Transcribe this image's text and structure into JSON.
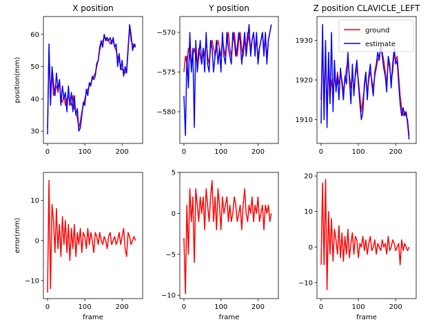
{
  "colors": {
    "ground": "#ff0000",
    "estimate": "#0000ff",
    "error": "#ff0000"
  },
  "chart_data": [
    {
      "type": "line",
      "panel": "x-position",
      "title": "X position",
      "xlabel": "",
      "ylabel": "position(mm)",
      "xlim": [
        -11,
        255
      ],
      "ylim": [
        26.2,
        65.5
      ],
      "xticks": [
        0,
        100,
        200
      ],
      "yticks": [
        30,
        40,
        50,
        60
      ],
      "grid": false,
      "legend": null,
      "x_start": 0,
      "x_step": 4,
      "series": [
        {
          "name": "ground",
          "color": "#ff0000",
          "values": [
            31,
            55,
            42,
            48,
            41,
            43,
            44,
            42,
            46,
            40,
            39,
            41,
            38,
            40,
            41,
            39,
            38,
            41,
            37,
            36,
            34,
            31,
            33,
            36,
            38,
            40,
            42,
            43,
            44,
            45,
            46,
            47,
            48,
            50,
            52,
            55,
            57,
            58,
            59,
            59,
            58,
            58,
            57,
            58,
            58,
            56,
            55,
            53,
            52,
            50,
            49,
            49,
            48,
            49,
            56,
            62,
            58,
            57,
            56,
            57
          ]
        },
        {
          "name": "estimate",
          "color": "#0000ff",
          "values": [
            29,
            57,
            38,
            50,
            45,
            41,
            48,
            43,
            46,
            38,
            44,
            40,
            42,
            36,
            44,
            38,
            42,
            36,
            41,
            35,
            37,
            30,
            31,
            35,
            39,
            38,
            43,
            41,
            45,
            44,
            47,
            46,
            47,
            51,
            52,
            56,
            58,
            56,
            60,
            58,
            59,
            58,
            59,
            57,
            59,
            56,
            57,
            50,
            54,
            49,
            52,
            47,
            50,
            48,
            55,
            63,
            60,
            55,
            57,
            56
          ]
        }
      ]
    },
    {
      "type": "line",
      "panel": "y-position",
      "title": "Y position",
      "xlabel": "",
      "ylabel": "",
      "xlim": [
        -11,
        255
      ],
      "ylim": [
        -584,
        -568
      ],
      "xticks": [
        0,
        100,
        200
      ],
      "yticks": [
        -580,
        -575,
        -570
      ],
      "grid": false,
      "legend": null,
      "x_start": 0,
      "x_step": 4,
      "series": [
        {
          "name": "ground",
          "color": "#ff0000",
          "values": [
            -575,
            -573,
            -574,
            -572,
            -573,
            -574,
            -573,
            -572,
            -573,
            -574,
            -572,
            -573,
            -574,
            -572,
            -573,
            -571,
            -573,
            -574,
            -572,
            -571,
            -572,
            -573,
            -572,
            -571,
            -572,
            -573,
            -571,
            -572,
            -573,
            -571,
            -570,
            -572,
            -573,
            -571,
            -570,
            -572,
            -573,
            -571,
            -570,
            -572,
            -573,
            -571,
            -572,
            -570,
            -571,
            -572,
            -571,
            -570,
            -572,
            -571,
            -573,
            -572,
            -571,
            -570,
            -572,
            -571,
            -573,
            -571,
            -570,
            -569
          ]
        },
        {
          "name": "estimate",
          "color": "#0000ff",
          "values": [
            -578,
            -583,
            -573,
            -577,
            -570,
            -575,
            -572,
            -582,
            -571,
            -575,
            -573,
            -571,
            -574,
            -572,
            -575,
            -570,
            -574,
            -575,
            -571,
            -572,
            -575,
            -573,
            -571,
            -574,
            -572,
            -575,
            -570,
            -573,
            -574,
            -570,
            -572,
            -573,
            -574,
            -570,
            -571,
            -573,
            -572,
            -570,
            -571,
            -574,
            -572,
            -570,
            -573,
            -571,
            -569,
            -573,
            -571,
            -570,
            -573,
            -570,
            -574,
            -572,
            -571,
            -570,
            -573,
            -570,
            -574,
            -571,
            -570,
            -569
          ]
        }
      ]
    },
    {
      "type": "line",
      "panel": "z-position",
      "title": "Z position CLAVICLE_LEFT",
      "xlabel": "",
      "ylabel": "",
      "xlim": [
        -11,
        255
      ],
      "ylim": [
        1904,
        1936
      ],
      "xticks": [
        0,
        100,
        200
      ],
      "yticks": [
        1910,
        1920,
        1930
      ],
      "grid": false,
      "legend": {
        "position": "top-right",
        "entries": [
          "ground",
          "estimate"
        ]
      },
      "x_start": 0,
      "x_step": 4,
      "series": [
        {
          "name": "ground",
          "color": "#ff0000",
          "values": [
            1915,
            1930,
            1915,
            1928,
            1912,
            1925,
            1915,
            1920,
            1917,
            1921,
            1918,
            1922,
            1919,
            1921,
            1920,
            1917,
            1920,
            1923,
            1925,
            1921,
            1918,
            1922,
            1917,
            1921,
            1923,
            1920,
            1916,
            1912,
            1915,
            1918,
            1921,
            1917,
            1920,
            1922,
            1920,
            1918,
            1921,
            1923,
            1925,
            1926,
            1928,
            1927,
            1925,
            1922,
            1919,
            1925,
            1923,
            1920,
            1922,
            1927,
            1925,
            1926,
            1921,
            1916,
            1913,
            1911,
            1912,
            1911,
            1910,
            1906
          ]
        },
        {
          "name": "estimate",
          "color": "#0000ff",
          "values": [
            1909,
            1934,
            1910,
            1930,
            1908,
            1927,
            1914,
            1932,
            1912,
            1925,
            1917,
            1921,
            1915,
            1923,
            1919,
            1915,
            1921,
            1919,
            1927,
            1920,
            1914,
            1924,
            1916,
            1922,
            1925,
            1919,
            1914,
            1910,
            1912,
            1919,
            1922,
            1915,
            1921,
            1924,
            1919,
            1916,
            1922,
            1924,
            1927,
            1925,
            1929,
            1926,
            1923,
            1921,
            1917,
            1926,
            1924,
            1918,
            1924,
            1928,
            1924,
            1925,
            1919,
            1914,
            1911,
            1913,
            1911,
            1912,
            1909,
            1905
          ]
        }
      ]
    },
    {
      "type": "line",
      "panel": "x-error",
      "title": "",
      "xlabel": "frame",
      "ylabel": "error(mm)",
      "xlim": [
        -11,
        255
      ],
      "ylim": [
        -14.5,
        17
      ],
      "xticks": [
        0,
        100,
        200
      ],
      "yticks": [
        -10,
        0,
        10
      ],
      "grid": false,
      "legend": null,
      "x_start": 0,
      "x_step": 4,
      "series": [
        {
          "color": "#ff0000",
          "values": [
            -13,
            15,
            -12,
            9,
            5,
            -3,
            8,
            -2,
            4,
            -4,
            6,
            -1,
            5,
            -3,
            4,
            -5,
            3,
            -2,
            4,
            -4,
            2,
            -1,
            3,
            -3,
            2,
            1,
            -2,
            3,
            -1,
            2,
            0,
            -3,
            2,
            1,
            -1,
            2,
            0,
            -1,
            1,
            0,
            -2,
            1,
            2,
            -1,
            0,
            1,
            -1,
            0,
            2,
            -1,
            1,
            3,
            -2,
            -4,
            2,
            1,
            -1,
            0,
            1,
            0
          ]
        }
      ]
    },
    {
      "type": "line",
      "panel": "y-error",
      "title": "",
      "xlabel": "frame",
      "ylabel": "",
      "xlim": [
        -11,
        255
      ],
      "ylim": [
        -10.4,
        5
      ],
      "xticks": [
        0,
        100,
        200
      ],
      "yticks": [
        -10,
        -5,
        0,
        5
      ],
      "grid": false,
      "legend": null,
      "x_start": 0,
      "x_step": 4,
      "series": [
        {
          "color": "#ff0000",
          "values": [
            -3,
            -9.8,
            1,
            -5,
            3,
            -1,
            2,
            -6,
            3,
            1,
            -1,
            2,
            0,
            2,
            -2,
            3,
            1,
            -1,
            2,
            4,
            -1,
            2,
            -2,
            3,
            1,
            -2,
            2,
            0,
            1,
            2,
            -1,
            1,
            -1,
            0,
            2,
            1,
            -1,
            0,
            1,
            -2,
            1,
            3,
            0,
            -1,
            1,
            0,
            2,
            -1,
            1,
            0,
            2,
            -1,
            0,
            1,
            -2,
            1,
            0,
            1,
            -1,
            0
          ]
        }
      ]
    },
    {
      "type": "line",
      "panel": "z-error",
      "title": "",
      "xlabel": "frame",
      "ylabel": "",
      "xlim": [
        -11,
        255
      ],
      "ylim": [
        -14.5,
        21
      ],
      "xticks": [
        0,
        100,
        200
      ],
      "yticks": [
        -10,
        0,
        10,
        20
      ],
      "grid": false,
      "legend": null,
      "x_start": 0,
      "x_step": 4,
      "series": [
        {
          "color": "#ff0000",
          "values": [
            -5,
            18,
            -5,
            19,
            -12,
            10,
            -2,
            8,
            -4,
            5,
            2,
            -2,
            6,
            -3,
            4,
            -4,
            3,
            -2,
            5,
            -3,
            1,
            4,
            -2,
            3,
            2,
            -3,
            1,
            0,
            3,
            -1,
            2,
            -2,
            1,
            3,
            -1,
            0,
            2,
            -2,
            1,
            0,
            -1,
            2,
            0,
            1,
            -2,
            3,
            -1,
            0,
            2,
            1,
            -1,
            0,
            1,
            -5,
            2,
            -1,
            1,
            0,
            -1,
            0
          ]
        }
      ]
    }
  ]
}
